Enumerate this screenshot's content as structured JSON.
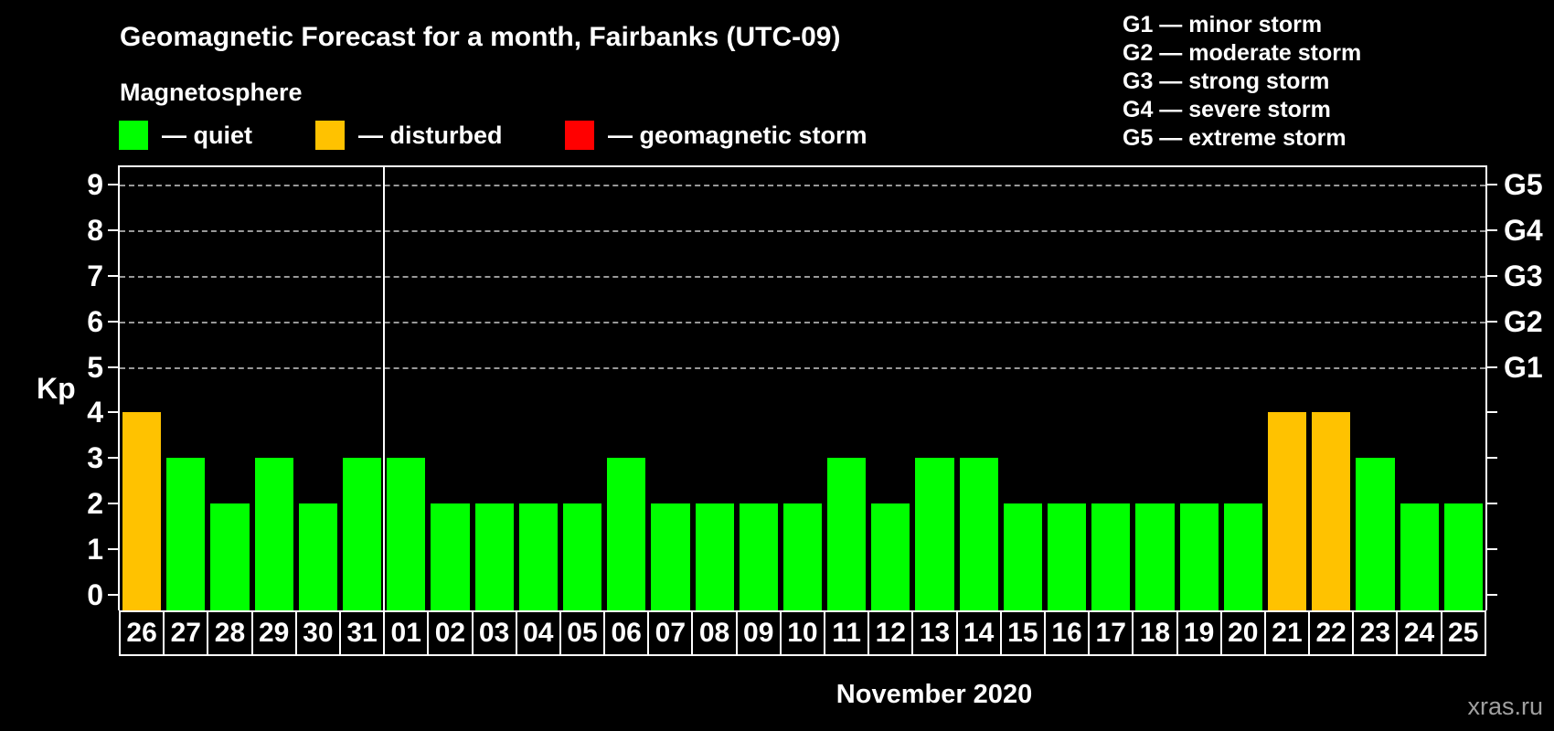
{
  "title": "Geomagnetic Forecast for a month, Fairbanks (UTC-09)",
  "subtitle": "Magnetosphere",
  "legend": {
    "dash": "—",
    "items": [
      {
        "name": "quiet",
        "label": "quiet",
        "color": "#00ff00"
      },
      {
        "name": "disturbed",
        "label": "disturbed",
        "color": "#ffc200"
      },
      {
        "name": "storm",
        "label": "geomagnetic storm",
        "color": "#ff0000"
      }
    ]
  },
  "g_legend": [
    "G1 — minor storm",
    "G2 — moderate storm",
    "G3 — strong storm",
    "G4 — severe storm",
    "G5 — extreme storm"
  ],
  "watermark": "xras.ru",
  "chart_data": {
    "type": "bar",
    "title": "Geomagnetic Forecast for a month, Fairbanks (UTC-09)",
    "ylabel": "Kp",
    "xlabel": "November 2020",
    "ylim": [
      0,
      9
    ],
    "grid": "dashed horizontal at storm levels only",
    "grid_levels": [
      5,
      6,
      7,
      8,
      9
    ],
    "month_divider_after_index": 5,
    "categories": [
      "26",
      "27",
      "28",
      "29",
      "30",
      "31",
      "01",
      "02",
      "03",
      "04",
      "05",
      "06",
      "07",
      "08",
      "09",
      "10",
      "11",
      "12",
      "13",
      "14",
      "15",
      "16",
      "17",
      "18",
      "19",
      "20",
      "21",
      "22",
      "23",
      "24",
      "25"
    ],
    "values": [
      4,
      3,
      2,
      3,
      2,
      3,
      3,
      2,
      2,
      2,
      2,
      3,
      2,
      2,
      2,
      2,
      3,
      2,
      3,
      3,
      2,
      2,
      2,
      2,
      2,
      2,
      4,
      4,
      3,
      2,
      2
    ],
    "states": [
      "disturbed",
      "quiet",
      "quiet",
      "quiet",
      "quiet",
      "quiet",
      "quiet",
      "quiet",
      "quiet",
      "quiet",
      "quiet",
      "quiet",
      "quiet",
      "quiet",
      "quiet",
      "quiet",
      "quiet",
      "quiet",
      "quiet",
      "quiet",
      "quiet",
      "quiet",
      "quiet",
      "quiet",
      "quiet",
      "quiet",
      "disturbed",
      "disturbed",
      "quiet",
      "quiet",
      "quiet"
    ],
    "state_colors": {
      "quiet": "#00ff00",
      "disturbed": "#ffc200",
      "storm": "#ff0000"
    },
    "right_axis_labels": [
      {
        "label": "G1",
        "level": 5
      },
      {
        "label": "G2",
        "level": 6
      },
      {
        "label": "G3",
        "level": 7
      },
      {
        "label": "G4",
        "level": 8
      },
      {
        "label": "G5",
        "level": 9
      }
    ]
  }
}
